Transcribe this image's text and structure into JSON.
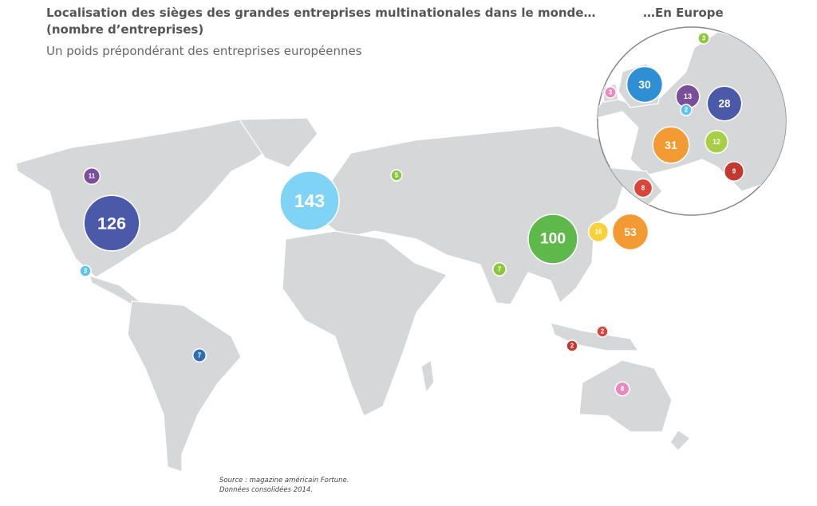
{
  "header": {
    "title": "Localisation des sièges des grandes entreprises multinationales dans le monde…",
    "unit": "(nombre d’entreprises)",
    "subtitle": "Un poids prépondérant des entreprises européennes"
  },
  "world": {
    "bubbles": [
      {
        "value": 11,
        "color": "#7a4e98"
      },
      {
        "value": 126,
        "color": "#4a5aa8"
      },
      {
        "value": 3,
        "color": "#5cc3ea"
      },
      {
        "value": 7,
        "color": "#2f6db5"
      },
      {
        "value": 143,
        "color": "#7fd3f5"
      },
      {
        "value": 5,
        "color": "#8cc63f"
      },
      {
        "value": 7,
        "color": "#8cc63f"
      },
      {
        "value": 100,
        "color": "#5fb84a"
      },
      {
        "value": 16,
        "color": "#f7d23a"
      },
      {
        "value": 53,
        "color": "#f39a32"
      },
      {
        "value": 2,
        "color": "#d9453b"
      },
      {
        "value": 2,
        "color": "#c2392f"
      },
      {
        "value": 8,
        "color": "#e88ac0"
      }
    ]
  },
  "europe": {
    "title": "…En Europe",
    "bubbles": [
      {
        "value": 3,
        "color": "#8cc63f"
      },
      {
        "value": 30,
        "color": "#2e8fd4"
      },
      {
        "value": 3,
        "color": "#e88ac0"
      },
      {
        "value": 13,
        "color": "#7a4e98"
      },
      {
        "value": 2,
        "color": "#5cc3ea"
      },
      {
        "value": 28,
        "color": "#4a5aa8"
      },
      {
        "value": 31,
        "color": "#f39a32"
      },
      {
        "value": 12,
        "color": "#a6cf45"
      },
      {
        "value": 9,
        "color": "#c2392f"
      },
      {
        "value": 8,
        "color": "#d9453b"
      }
    ]
  },
  "source": {
    "line1": "Source : magazine américain Fortune.",
    "line2": "Données consolidées 2014."
  }
}
